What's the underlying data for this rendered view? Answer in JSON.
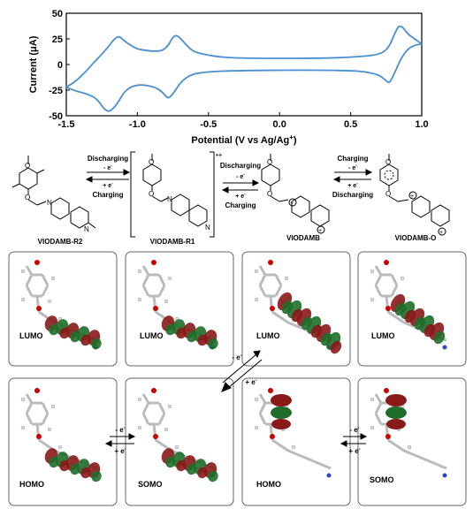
{
  "chart_data": {
    "type": "line",
    "xlabel": "Potential (V vs Ag/Ag",
    "xlabel_sup": "+",
    "xlabel_end": ")",
    "ylabel": "Current (μA)",
    "xlim": [
      -1.5,
      1.0
    ],
    "ylim": [
      -50,
      50
    ],
    "x_ticks": [
      "-1.5",
      "-1.0",
      "-0.5",
      "0.0",
      "0.5",
      "1.0"
    ],
    "y_ticks": [
      "50",
      "25",
      "0",
      "-25",
      "-50"
    ],
    "line_color": "#4a8fd4",
    "series": [
      {
        "x": [
          -1.5,
          -1.45,
          -1.4,
          -1.35,
          -1.3,
          -1.25,
          -1.2,
          -1.17,
          -1.13,
          -1.1,
          -1.05,
          -1.0,
          -0.95,
          -0.9,
          -0.85,
          -0.82,
          -0.78,
          -0.76,
          -0.73,
          -0.7,
          -0.65,
          -0.6,
          -0.5,
          -0.4,
          -0.2,
          0.0,
          0.2,
          0.4,
          0.6,
          0.7,
          0.75,
          0.78,
          0.8,
          0.82,
          0.84,
          0.87,
          0.9,
          0.95,
          1.0
        ],
        "y": [
          -22,
          -18,
          -12,
          -5,
          3,
          10,
          18,
          24,
          28,
          24,
          19,
          15,
          14,
          13,
          13,
          14,
          19,
          25,
          29,
          26,
          18,
          12,
          9,
          7,
          6,
          6,
          6,
          6.5,
          8,
          10,
          14,
          20,
          27,
          33,
          38,
          36,
          30,
          25,
          20
        ]
      },
      {
        "x": [
          1.0,
          0.95,
          0.9,
          0.85,
          0.82,
          0.79,
          0.77,
          0.75,
          0.7,
          0.6,
          0.5,
          0.3,
          0.0,
          -0.3,
          -0.5,
          -0.6,
          -0.65,
          -0.7,
          -0.73,
          -0.76,
          -0.78,
          -0.8,
          -0.83,
          -0.88,
          -0.95,
          -1.0,
          -1.05,
          -1.1,
          -1.13,
          -1.17,
          -1.2,
          -1.23,
          -1.26,
          -1.3,
          -1.35,
          -1.4,
          -1.45,
          -1.5
        ],
        "y": [
          20,
          19,
          15,
          5,
          -5,
          -14,
          -18,
          -16,
          -10,
          -7,
          -6,
          -5.5,
          -5.5,
          -6,
          -7,
          -9,
          -12,
          -18,
          -25,
          -30,
          -33,
          -31,
          -26,
          -22,
          -20,
          -20,
          -22,
          -28,
          -36,
          -43,
          -46,
          -44,
          -38,
          -32,
          -29,
          -27,
          -25,
          -22
        ]
      }
    ]
  },
  "scheme": {
    "species": {
      "r2": "VIODAMB-R2",
      "r1": "VIODAMB-R1",
      "neutral": "VIODAMB",
      "oxidized": "VIODAMB-O"
    },
    "step1": {
      "top": "Discharging",
      "plus": "- e",
      "minus": "+ e",
      "bottom": "Charging"
    },
    "step2": {
      "top": "Discharging",
      "plus": "- e",
      "minus": "+ e",
      "bottom": "Charging"
    },
    "step3": {
      "top": "Charging",
      "plus": "- e",
      "minus": "+ e",
      "bottom": "Discharging"
    },
    "radical_mark": "•+",
    "atom_o": "O",
    "atom_n": "N",
    "atom_np": "N",
    "plus_sign": "+",
    "methyl": "—"
  },
  "orbitals": {
    "top": [
      "LUMO",
      "LUMO",
      "LUMO",
      "LUMO"
    ],
    "bottom": [
      "HOMO",
      "SOMO",
      "HOMO",
      "SOMO"
    ],
    "arrow_left": {
      "top": "- e",
      "bottom": "+ e"
    },
    "arrow_diag": {
      "top": "- e",
      "bottom": "+ e"
    },
    "arrow_right": {
      "top": "- e",
      "bottom": "+ e"
    },
    "electron_sup": "-",
    "lobe_red": "#8a1a1a",
    "lobe_green": "#1e6e2a"
  }
}
